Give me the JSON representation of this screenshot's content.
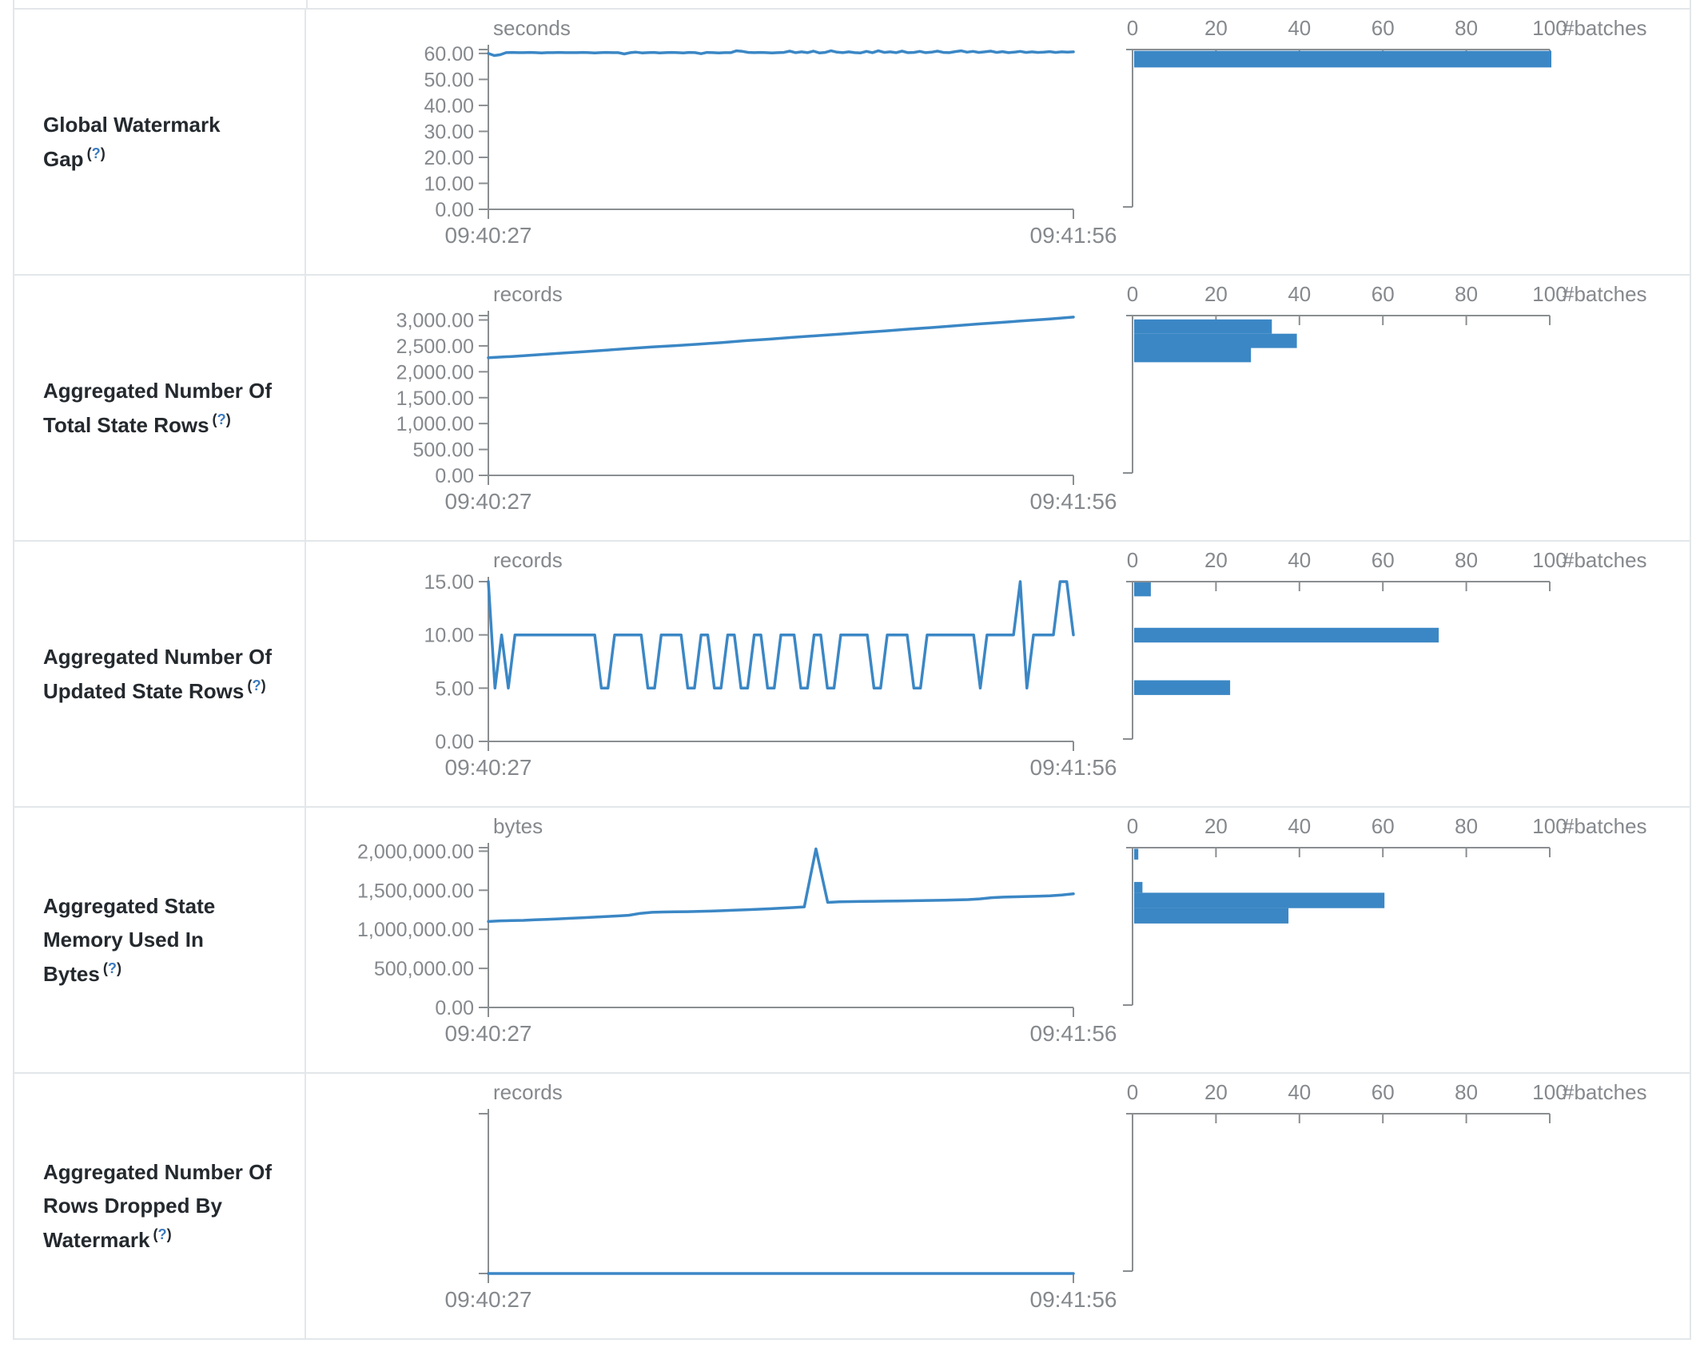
{
  "colors": {
    "line_blue": "#3b87c5",
    "bar_blue": "#3b87c5",
    "axis_gray": "#8a8e91",
    "tick_text_gray": "#85898d",
    "label_dark": "#24292e",
    "help_blue": "#3a7bbf",
    "border_gray": "#e3e7ea"
  },
  "help": {
    "open": "(",
    "q": "?",
    "close": ")"
  },
  "time_axis": {
    "start": "09:40:27",
    "end": "09:41:56"
  },
  "histogram_axis": {
    "xticks": [
      0,
      20,
      40,
      60,
      80,
      100
    ],
    "xlabel": "#batches",
    "max": 100
  },
  "rows": [
    {
      "label": "Global Watermark Gap"
    },
    {
      "label": "Aggregated Number Of Total State Rows"
    },
    {
      "label": "Aggregated Number Of Updated State Rows"
    },
    {
      "label": "Aggregated State Memory Used In Bytes"
    },
    {
      "label": "Aggregated Number Of Rows Dropped By Watermark"
    }
  ],
  "chart_data": [
    {
      "metric": "Global Watermark Gap",
      "type": "line",
      "unit": "seconds",
      "x_start": "09:40:27",
      "x_end": "09:41:56",
      "ylim": [
        0,
        61.5
      ],
      "yticks": [
        0,
        10,
        20,
        30,
        40,
        50,
        60
      ],
      "values": [
        60,
        59.2,
        59.5,
        60.3,
        60.4,
        60.3,
        60.3,
        60.4,
        60.3,
        60.2,
        60.3,
        60.3,
        60.4,
        60.3,
        60.3,
        60.3,
        60.4,
        60.3,
        60.2,
        60.3,
        60.4,
        60.3,
        60.3,
        59.8,
        60.3,
        60.5,
        60.2,
        60.3,
        60.4,
        60.2,
        60.3,
        60.4,
        60.3,
        60.2,
        60.4,
        60.3,
        59.9,
        60.4,
        60.3,
        60.2,
        60.3,
        60.3,
        61.0,
        60.8,
        60.4,
        60.3,
        60.4,
        60.3,
        60.2,
        60.3,
        60.4,
        60.9,
        60.3,
        60.6,
        60.3,
        60.9,
        60.2,
        60.4,
        61.0,
        60.5,
        60.3,
        60.6,
        60.3,
        60.2,
        60.8,
        60.3,
        61.0,
        60.4,
        60.6,
        60.3,
        60.9,
        60.3,
        60.4,
        60.8,
        60.3,
        60.5,
        60.9,
        60.4,
        60.3,
        60.7,
        61.0,
        60.5,
        60.8,
        60.4,
        60.6,
        60.9,
        60.4,
        60.7,
        60.3,
        60.5,
        60.8,
        60.4,
        60.6,
        60.4,
        60.5,
        60.7,
        60.4,
        60.6,
        60.5,
        60.6
      ],
      "histogram": {
        "type": "bar",
        "xticks": [
          0,
          20,
          40,
          60,
          80,
          100
        ],
        "xlabel": "#batches",
        "axis_max": 100,
        "bins": [
          {
            "range": [
              54.5,
              61
            ],
            "count": 100
          }
        ]
      }
    },
    {
      "metric": "Aggregated Number Of Total State Rows",
      "type": "line",
      "unit": "records",
      "x_start": "09:40:27",
      "x_end": "09:41:56",
      "ylim": [
        0,
        3085
      ],
      "yticks": [
        0,
        500,
        1000,
        1500,
        2000,
        2500,
        3000
      ],
      "values": [
        2270,
        2295,
        2325,
        2355,
        2385,
        2415,
        2450,
        2480,
        2505,
        2535,
        2565,
        2600,
        2630,
        2665,
        2695,
        2725,
        2760,
        2790,
        2825,
        2855,
        2890,
        2925,
        2955,
        2990,
        3020,
        3055
      ],
      "histogram": {
        "type": "bar",
        "xticks": [
          0,
          20,
          40,
          60,
          80,
          100
        ],
        "xlabel": "#batches",
        "axis_max": 100,
        "bins": [
          {
            "range": [
              2730,
              3010
            ],
            "count": 33
          },
          {
            "range": [
              2450,
              2730
            ],
            "count": 39
          },
          {
            "range": [
              2170,
              2450
            ],
            "count": 28
          }
        ]
      }
    },
    {
      "metric": "Aggregated Number Of Updated State Rows",
      "type": "line",
      "unit": "records",
      "x_start": "09:40:27",
      "x_end": "09:41:56",
      "ylim": [
        0,
        15
      ],
      "yticks": [
        0,
        5,
        10,
        15
      ],
      "values": [
        15,
        5,
        10,
        5,
        10,
        10,
        10,
        10,
        10,
        10,
        10,
        10,
        10,
        10,
        10,
        10,
        10,
        5,
        5,
        10,
        10,
        10,
        10,
        10,
        5,
        5,
        10,
        10,
        10,
        10,
        5,
        5,
        10,
        10,
        5,
        5,
        10,
        10,
        5,
        5,
        10,
        10,
        5,
        5,
        10,
        10,
        10,
        5,
        5,
        10,
        10,
        5,
        5,
        10,
        10,
        10,
        10,
        10,
        5,
        5,
        10,
        10,
        10,
        10,
        5,
        5,
        10,
        10,
        10,
        10,
        10,
        10,
        10,
        10,
        5,
        10,
        10,
        10,
        10,
        10,
        15,
        5,
        10,
        10,
        10,
        10,
        15,
        15,
        10
      ],
      "histogram": {
        "type": "bar",
        "xticks": [
          0,
          20,
          40,
          60,
          80,
          100
        ],
        "xlabel": "#batches",
        "axis_max": 100,
        "bins": [
          {
            "range": [
              13.6,
              15
            ],
            "count": 4
          },
          {
            "range": [
              9.2,
              10.6
            ],
            "count": 73
          },
          {
            "range": [
              4.2,
              5.6
            ],
            "count": 23
          }
        ]
      }
    },
    {
      "metric": "Aggregated State Memory Used In Bytes",
      "type": "line",
      "unit": "bytes",
      "x_start": "09:40:27",
      "x_end": "09:41:56",
      "ylim": [
        0,
        2045000
      ],
      "yticks": [
        0,
        500000,
        1000000,
        1500000,
        2000000
      ],
      "values": [
        1100000,
        1108000,
        1112000,
        1115000,
        1122000,
        1128000,
        1134000,
        1141000,
        1148000,
        1155000,
        1163000,
        1171000,
        1180000,
        1205000,
        1218000,
        1222000,
        1224000,
        1226000,
        1229000,
        1233000,
        1238000,
        1244000,
        1250000,
        1257000,
        1263000,
        1270000,
        1278000,
        1287000,
        2030000,
        1345000,
        1352000,
        1355000,
        1357000,
        1359000,
        1361000,
        1363000,
        1365000,
        1367000,
        1370000,
        1373000,
        1376000,
        1380000,
        1390000,
        1405000,
        1412000,
        1416000,
        1420000,
        1424000,
        1428000,
        1440000,
        1455000
      ],
      "histogram": {
        "type": "bar",
        "xticks": [
          0,
          20,
          40,
          60,
          80,
          100
        ],
        "xlabel": "#batches",
        "axis_max": 100,
        "bins": [
          {
            "range": [
              1890000,
              2030000
            ],
            "count": 1
          },
          {
            "range": [
              1460000,
              1600000
            ],
            "count": 2
          },
          {
            "range": [
              1260000,
              1460000
            ],
            "count": 60
          },
          {
            "range": [
              1060000,
              1260000
            ],
            "count": 37
          }
        ]
      }
    },
    {
      "metric": "Aggregated Number Of Rows Dropped By Watermark",
      "type": "line",
      "unit": "records",
      "x_start": "09:40:27",
      "x_end": "09:41:56",
      "ylim": [
        0,
        1
      ],
      "yticks": [],
      "values": [
        0,
        0,
        0,
        0,
        0,
        0,
        0,
        0,
        0,
        0
      ],
      "histogram": {
        "type": "bar",
        "xticks": [
          0,
          20,
          40,
          60,
          80,
          100
        ],
        "xlabel": "#batches",
        "axis_max": 100,
        "bins": []
      }
    }
  ]
}
